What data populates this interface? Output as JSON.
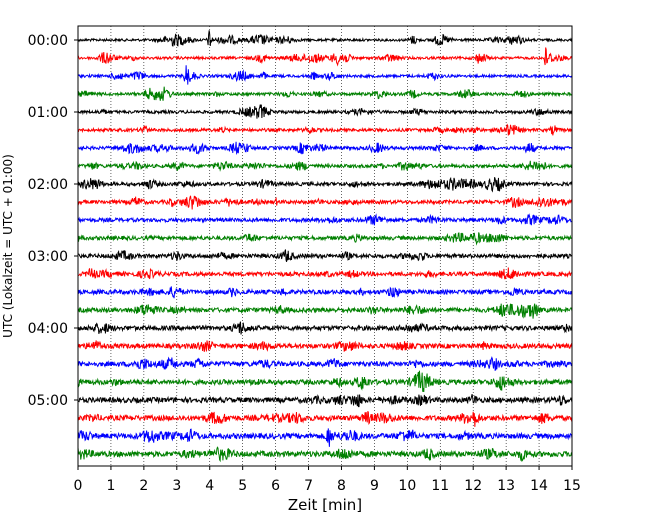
{
  "chart_data": {
    "type": "line",
    "title": "",
    "xlabel": "Zeit  [min]",
    "ylabel": "UTC (Lokalzeit = UTC + 01:00)",
    "xlim": [
      0,
      15
    ],
    "x_ticks": [
      "0",
      "1",
      "2",
      "3",
      "4",
      "5",
      "6",
      "7",
      "8",
      "9",
      "10",
      "11",
      "12",
      "13",
      "14",
      "15"
    ],
    "y_tick_labels": [
      "00:00",
      "01:00",
      "02:00",
      "03:00",
      "04:00",
      "05:00"
    ],
    "grid": "vertical dotted lines at each minute",
    "trace_interval_minutes": 15,
    "trace_count": 24,
    "color_cycle": [
      "#000000",
      "#ff0000",
      "#0000ff",
      "#008000"
    ],
    "notable_events": [
      {
        "trace_time": "00:00",
        "x_min": 4.0
      },
      {
        "trace_time": "00:15",
        "x_min": 14.2
      },
      {
        "trace_time": "00:30",
        "x_min": 3.3
      },
      {
        "trace_time": "05:30",
        "x_min": 7.6
      }
    ]
  }
}
